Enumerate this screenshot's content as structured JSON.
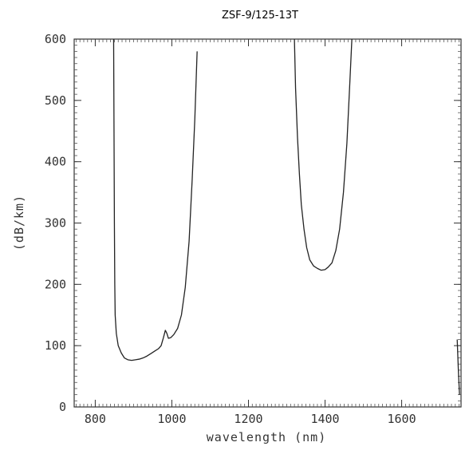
{
  "chart_data": {
    "type": "line",
    "title": "ZSF-9/125-13T",
    "xlabel": "wavelength (nm)",
    "ylabel": "(dB/km)",
    "xlim": [
      745,
      1755
    ],
    "ylim": [
      0,
      600
    ],
    "xticks": [
      800,
      1000,
      1200,
      1400,
      1600
    ],
    "yticks": [
      0,
      100,
      200,
      300,
      400,
      500,
      600
    ],
    "grid": false,
    "line_color": "#222222",
    "series": [
      {
        "points": [
          [
            848,
            600
          ],
          [
            849,
            450
          ],
          [
            850,
            300
          ],
          [
            851,
            200
          ],
          [
            852,
            150
          ],
          [
            855,
            120
          ],
          [
            860,
            100
          ],
          [
            868,
            88
          ],
          [
            876,
            80
          ],
          [
            885,
            77
          ],
          [
            895,
            76
          ],
          [
            905,
            77
          ],
          [
            915,
            78
          ],
          [
            925,
            80
          ],
          [
            935,
            83
          ],
          [
            945,
            87
          ],
          [
            955,
            91
          ],
          [
            965,
            95
          ],
          [
            972,
            100
          ],
          [
            978,
            113
          ],
          [
            983,
            125
          ],
          [
            987,
            120
          ],
          [
            991,
            112
          ],
          [
            997,
            113
          ],
          [
            1005,
            118
          ],
          [
            1015,
            128
          ],
          [
            1025,
            150
          ],
          [
            1035,
            195
          ],
          [
            1045,
            270
          ],
          [
            1053,
            370
          ],
          [
            1060,
            470
          ],
          [
            1066,
            580
          ]
        ]
      },
      {
        "points": [
          [
            1320,
            600
          ],
          [
            1323,
            520
          ],
          [
            1328,
            440
          ],
          [
            1333,
            380
          ],
          [
            1338,
            330
          ],
          [
            1345,
            290
          ],
          [
            1352,
            260
          ],
          [
            1360,
            240
          ],
          [
            1370,
            230
          ],
          [
            1380,
            226
          ],
          [
            1390,
            223
          ],
          [
            1400,
            224
          ],
          [
            1408,
            228
          ],
          [
            1418,
            235
          ],
          [
            1428,
            255
          ],
          [
            1438,
            290
          ],
          [
            1448,
            350
          ],
          [
            1457,
            430
          ],
          [
            1464,
            520
          ],
          [
            1470,
            600
          ]
        ]
      },
      {
        "points": [
          [
            1745,
            110
          ],
          [
            1748,
            60
          ],
          [
            1751,
            20
          ]
        ]
      }
    ]
  }
}
